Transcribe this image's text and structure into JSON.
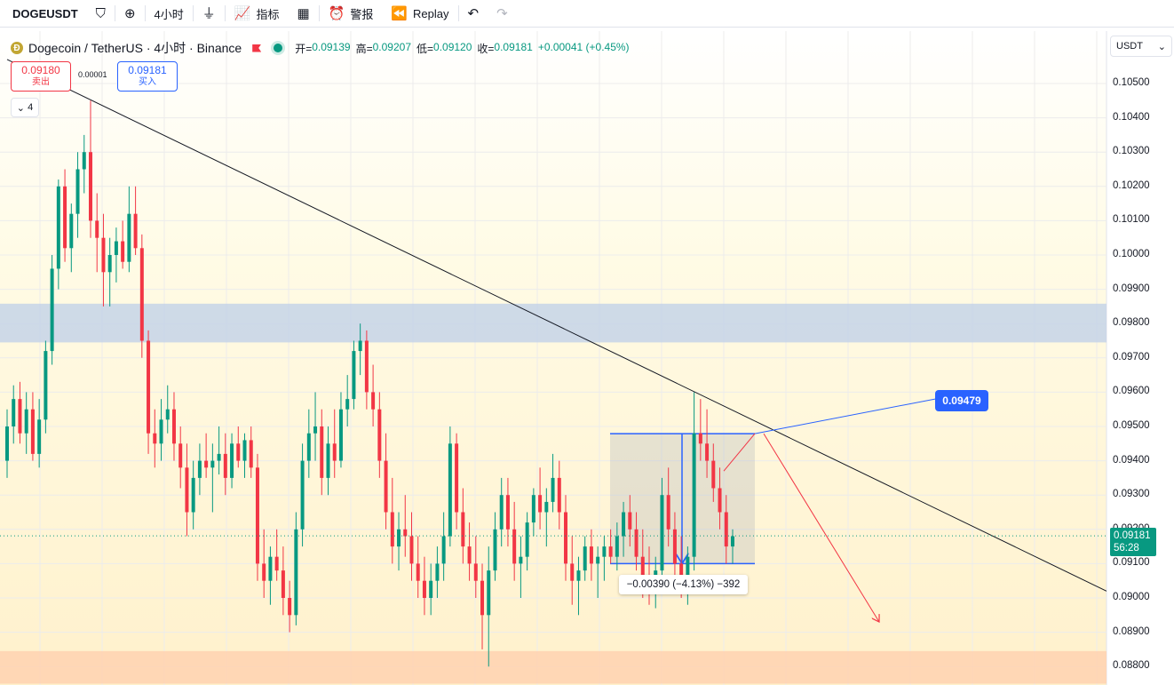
{
  "toolbar": {
    "symbol": "DOGEUSDT",
    "interval": "4小时",
    "indicators_label": "指标",
    "alerts_label": "警报",
    "replay_label": "Replay",
    "icons": [
      "diamond-icon",
      "plus-circle-icon",
      "candles-icon",
      "trend-icon",
      "grid-icon",
      "alarm-icon",
      "replay-icon",
      "undo-icon",
      "redo-icon"
    ]
  },
  "legend": {
    "title": "Dogecoin / TetherUS · 4小时 · Binance",
    "open_label": "开=",
    "open": "0.09139",
    "high_label": "高=",
    "high": "0.09207",
    "low_label": "低=",
    "low": "0.09120",
    "close_label": "收=",
    "close": "0.09181",
    "change": "+0.00041 (+0.45%)"
  },
  "trade": {
    "sell_price": "0.09180",
    "sell_label": "卖出",
    "spread": "0.00001",
    "buy_price": "0.09181",
    "buy_label": "买入"
  },
  "collapse_count": "4",
  "currency": "USDT",
  "price_scale": [
    "0.10500",
    "0.10400",
    "0.10300",
    "0.10200",
    "0.10100",
    "0.10000",
    "0.09900",
    "0.09800",
    "0.09700",
    "0.09600",
    "0.09500",
    "0.09400",
    "0.09300",
    "0.09200",
    "0.09100",
    "0.09000",
    "0.08900",
    "0.08800"
  ],
  "last_price": "0.09181",
  "countdown": "56:28",
  "flag_price": "0.09479",
  "measure_text": "−0.00390 (−4.13%) −392",
  "colors": {
    "up": "#089981",
    "down": "#f23645",
    "blue": "#2962ff",
    "zone_blue": "#c5d3e8",
    "zone_orange": "#ffd2b0"
  },
  "chart_data": {
    "type": "candlestick",
    "ylim": [
      0.0875,
      0.1058
    ],
    "candles": [
      [
        0.094,
        0.0955,
        0.0935,
        0.095
      ],
      [
        0.095,
        0.0962,
        0.0945,
        0.0958
      ],
      [
        0.0958,
        0.0963,
        0.0945,
        0.0948
      ],
      [
        0.0948,
        0.096,
        0.0942,
        0.0955
      ],
      [
        0.0955,
        0.096,
        0.094,
        0.0942
      ],
      [
        0.0942,
        0.0958,
        0.0938,
        0.0952
      ],
      [
        0.0952,
        0.0975,
        0.0948,
        0.0972
      ],
      [
        0.0972,
        0.1,
        0.0968,
        0.0996
      ],
      [
        0.0996,
        0.1022,
        0.099,
        0.102
      ],
      [
        0.102,
        0.1025,
        0.0998,
        0.1002
      ],
      [
        0.1002,
        0.1015,
        0.0995,
        0.1012
      ],
      [
        0.1012,
        0.103,
        0.1005,
        0.1025
      ],
      [
        0.1025,
        0.1035,
        0.1018,
        0.103
      ],
      [
        0.103,
        0.1045,
        0.1005,
        0.101
      ],
      [
        0.101,
        0.1018,
        0.0995,
        0.1005
      ],
      [
        0.1005,
        0.1012,
        0.0985,
        0.0995
      ],
      [
        0.0995,
        0.1005,
        0.0985,
        0.1
      ],
      [
        0.1,
        0.1008,
        0.0992,
        0.1004
      ],
      [
        0.1004,
        0.101,
        0.0996,
        0.0998
      ],
      [
        0.0998,
        0.102,
        0.0995,
        0.1012
      ],
      [
        0.1012,
        0.102,
        0.1,
        0.1002
      ],
      [
        0.1002,
        0.1006,
        0.097,
        0.0975
      ],
      [
        0.0975,
        0.0978,
        0.0942,
        0.0948
      ],
      [
        0.0948,
        0.0955,
        0.0938,
        0.0945
      ],
      [
        0.0945,
        0.0958,
        0.094,
        0.0952
      ],
      [
        0.0952,
        0.0962,
        0.0948,
        0.0955
      ],
      [
        0.0955,
        0.096,
        0.094,
        0.0945
      ],
      [
        0.0945,
        0.095,
        0.0932,
        0.0938
      ],
      [
        0.0938,
        0.0945,
        0.0918,
        0.0925
      ],
      [
        0.0925,
        0.094,
        0.092,
        0.0935
      ],
      [
        0.0935,
        0.0945,
        0.093,
        0.094
      ],
      [
        0.094,
        0.0948,
        0.0935,
        0.0938
      ],
      [
        0.0938,
        0.0945,
        0.0925,
        0.094
      ],
      [
        0.094,
        0.095,
        0.0936,
        0.0942
      ],
      [
        0.0942,
        0.0948,
        0.093,
        0.0935
      ],
      [
        0.0935,
        0.0948,
        0.0932,
        0.0945
      ],
      [
        0.0945,
        0.095,
        0.0938,
        0.094
      ],
      [
        0.094,
        0.0948,
        0.0935,
        0.0946
      ],
      [
        0.0946,
        0.095,
        0.0935,
        0.0938
      ],
      [
        0.0938,
        0.0942,
        0.0905,
        0.091
      ],
      [
        0.091,
        0.092,
        0.09,
        0.0905
      ],
      [
        0.0905,
        0.0915,
        0.0898,
        0.0912
      ],
      [
        0.0912,
        0.092,
        0.0905,
        0.0908
      ],
      [
        0.0908,
        0.0915,
        0.0895,
        0.09
      ],
      [
        0.09,
        0.0905,
        0.089,
        0.0895
      ],
      [
        0.0895,
        0.0925,
        0.0892,
        0.092
      ],
      [
        0.092,
        0.0945,
        0.0915,
        0.094
      ],
      [
        0.094,
        0.0955,
        0.0935,
        0.0948
      ],
      [
        0.0948,
        0.096,
        0.094,
        0.095
      ],
      [
        0.095,
        0.0955,
        0.093,
        0.0935
      ],
      [
        0.0935,
        0.095,
        0.093,
        0.0945
      ],
      [
        0.0945,
        0.0955,
        0.0935,
        0.094
      ],
      [
        0.094,
        0.096,
        0.0938,
        0.0955
      ],
      [
        0.0955,
        0.0965,
        0.095,
        0.0958
      ],
      [
        0.0958,
        0.0975,
        0.0955,
        0.0972
      ],
      [
        0.0972,
        0.098,
        0.0965,
        0.0975
      ],
      [
        0.0975,
        0.0978,
        0.0955,
        0.096
      ],
      [
        0.096,
        0.0968,
        0.095,
        0.0955
      ],
      [
        0.0955,
        0.096,
        0.0935,
        0.094
      ],
      [
        0.094,
        0.0948,
        0.092,
        0.0925
      ],
      [
        0.0925,
        0.0935,
        0.091,
        0.0915
      ],
      [
        0.0915,
        0.0925,
        0.0908,
        0.092
      ],
      [
        0.092,
        0.093,
        0.0912,
        0.0918
      ],
      [
        0.0918,
        0.0925,
        0.0905,
        0.091
      ],
      [
        0.091,
        0.0918,
        0.09,
        0.0905
      ],
      [
        0.0905,
        0.0912,
        0.0895,
        0.09
      ],
      [
        0.09,
        0.091,
        0.0895,
        0.0905
      ],
      [
        0.0905,
        0.0915,
        0.09,
        0.091
      ],
      [
        0.091,
        0.0925,
        0.0905,
        0.0918
      ],
      [
        0.0918,
        0.095,
        0.0915,
        0.0945
      ],
      [
        0.0945,
        0.0948,
        0.092,
        0.0925
      ],
      [
        0.0925,
        0.0932,
        0.091,
        0.0915
      ],
      [
        0.0915,
        0.0922,
        0.0905,
        0.091
      ],
      [
        0.091,
        0.0918,
        0.09,
        0.0905
      ],
      [
        0.0905,
        0.091,
        0.0885,
        0.0895
      ],
      [
        0.0895,
        0.0915,
        0.088,
        0.0908
      ],
      [
        0.0908,
        0.0925,
        0.0905,
        0.092
      ],
      [
        0.092,
        0.0935,
        0.0915,
        0.093
      ],
      [
        0.093,
        0.0935,
        0.0915,
        0.092
      ],
      [
        0.092,
        0.0928,
        0.0905,
        0.091
      ],
      [
        0.091,
        0.0918,
        0.09,
        0.0912
      ],
      [
        0.0912,
        0.0925,
        0.0908,
        0.0922
      ],
      [
        0.0922,
        0.0932,
        0.0918,
        0.093
      ],
      [
        0.093,
        0.0938,
        0.092,
        0.0925
      ],
      [
        0.0925,
        0.0932,
        0.0915,
        0.0928
      ],
      [
        0.0928,
        0.0942,
        0.0925,
        0.0935
      ],
      [
        0.0935,
        0.094,
        0.092,
        0.0925
      ],
      [
        0.0925,
        0.093,
        0.0905,
        0.091
      ],
      [
        0.091,
        0.0918,
        0.0898,
        0.0905
      ],
      [
        0.0905,
        0.0912,
        0.0895,
        0.0908
      ],
      [
        0.0908,
        0.0918,
        0.0905,
        0.0915
      ],
      [
        0.0915,
        0.092,
        0.0905,
        0.091
      ],
      [
        0.091,
        0.0915,
        0.09,
        0.0912
      ],
      [
        0.0912,
        0.0918,
        0.0905,
        0.0915
      ],
      [
        0.0915,
        0.092,
        0.091,
        0.0912
      ],
      [
        0.0912,
        0.0922,
        0.0908,
        0.0918
      ],
      [
        0.0918,
        0.0928,
        0.0912,
        0.0925
      ],
      [
        0.0925,
        0.093,
        0.0915,
        0.092
      ],
      [
        0.092,
        0.0925,
        0.0908,
        0.0912
      ],
      [
        0.0912,
        0.092,
        0.09,
        0.0905
      ],
      [
        0.0905,
        0.0915,
        0.0898,
        0.0902
      ],
      [
        0.0902,
        0.0912,
        0.0897,
        0.0908
      ],
      [
        0.0908,
        0.0935,
        0.0905,
        0.093
      ],
      [
        0.093,
        0.0938,
        0.0915,
        0.092
      ],
      [
        0.092,
        0.0925,
        0.0905,
        0.091
      ],
      [
        0.091,
        0.0918,
        0.09,
        0.0904
      ],
      [
        0.0904,
        0.0915,
        0.0898,
        0.0912
      ],
      [
        0.0912,
        0.096,
        0.0908,
        0.0948
      ],
      [
        0.0948,
        0.0958,
        0.094,
        0.0945
      ],
      [
        0.0945,
        0.0955,
        0.0935,
        0.094
      ],
      [
        0.094,
        0.0945,
        0.0928,
        0.0932
      ],
      [
        0.0932,
        0.0938,
        0.092,
        0.0925
      ],
      [
        0.0925,
        0.093,
        0.091,
        0.0915
      ],
      [
        0.0915,
        0.092,
        0.091,
        0.0918
      ]
    ],
    "last_close": 0.09181,
    "grid": true,
    "zones": [
      {
        "from": 0.09745,
        "to": 0.09858,
        "color": "blue"
      },
      {
        "from": 0.0875,
        "to": 0.08845,
        "color": "orange"
      }
    ],
    "trendline": {
      "from_price": 0.1057,
      "to_price": 0.0902
    }
  }
}
